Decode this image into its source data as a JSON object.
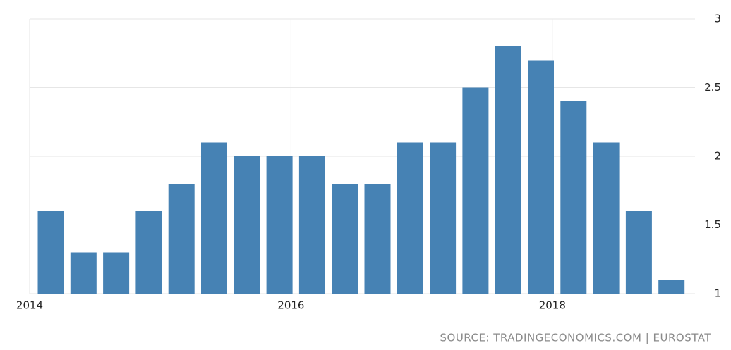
{
  "chart_data": {
    "type": "bar",
    "categories": [
      "2014",
      null,
      null,
      null,
      null,
      null,
      null,
      null,
      "2016",
      null,
      null,
      null,
      null,
      null,
      null,
      null,
      "2018",
      null,
      null,
      null
    ],
    "values": [
      1.6,
      1.3,
      1.3,
      1.6,
      1.8,
      2.1,
      2.0,
      2.0,
      2.0,
      1.8,
      1.8,
      2.1,
      2.1,
      2.5,
      2.8,
      2.7,
      2.4,
      2.1,
      1.6,
      1.1
    ],
    "color": "#4682b4",
    "ylim": [
      1,
      3
    ],
    "yticks": [
      1,
      1.5,
      2,
      2.5,
      3
    ],
    "grid": true,
    "source": "SOURCE: TRADINGECONOMICS.COM | EUROSTAT"
  }
}
